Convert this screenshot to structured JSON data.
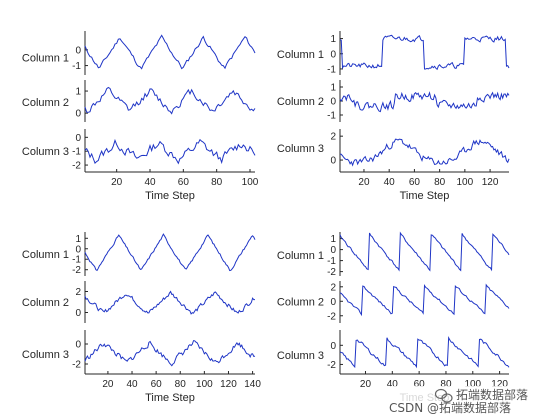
{
  "chart_data": [
    {
      "type": "line",
      "panel": "top-left",
      "xlabel": "Time Step",
      "xlim": [
        1,
        103
      ],
      "xticks": [
        20,
        40,
        60,
        80,
        100
      ],
      "rows": [
        {
          "name": "Column 1",
          "ylim": [
            -1.6,
            1.2
          ],
          "yticks": [
            0,
            -1
          ],
          "yticklabels": [
            "0",
            "-1"
          ],
          "style": {
            "kind": "tri",
            "period": 25,
            "phase": 3,
            "amp": 1.0,
            "offset": -0.2,
            "noise": 0.22,
            "seed": 11
          }
        },
        {
          "name": "Column 2",
          "ylim": [
            -0.4,
            1.5
          ],
          "yticks": [
            1,
            0
          ],
          "yticklabels": [
            "1",
            "0"
          ],
          "style": {
            "kind": "tri",
            "period": 25,
            "phase": 10,
            "amp": 0.45,
            "offset": 0.55,
            "noise": 0.28,
            "seed": 12
          }
        },
        {
          "name": "Column 3",
          "ylim": [
            -2.5,
            0.6
          ],
          "yticks": [
            0,
            -1,
            -2
          ],
          "yticklabels": [
            "0",
            "-1",
            "-2"
          ],
          "style": {
            "kind": "tri",
            "period": 25,
            "phase": 5,
            "amp": 0.6,
            "offset": -1.0,
            "noise": 0.55,
            "seed": 13
          }
        }
      ]
    },
    {
      "type": "line",
      "panel": "top-right",
      "xlabel": "Time Step",
      "xlim": [
        1,
        135
      ],
      "xticks": [
        20,
        40,
        60,
        80,
        100,
        120
      ],
      "rows": [
        {
          "name": "Column 1",
          "ylim": [
            -1.4,
            1.5
          ],
          "yticks": [
            1,
            0,
            -1
          ],
          "yticklabels": [
            "1",
            "0",
            "-1"
          ],
          "style": {
            "kind": "rect",
            "period": 65,
            "phase": 30,
            "amp": 0.9,
            "offset": 0.1,
            "noise": 0.28,
            "seed": 21
          }
        },
        {
          "name": "Column 2",
          "ylim": [
            -1.5,
            1.5
          ],
          "yticks": [
            1,
            0,
            -1
          ],
          "yticklabels": [
            "1",
            "0",
            "-1"
          ],
          "style": {
            "kind": "rect",
            "period": 65,
            "phase": 20,
            "amp": 0.35,
            "offset": 0.0,
            "noise": 0.5,
            "seed": 22
          }
        },
        {
          "name": "Column 3",
          "ylim": [
            -1.0,
            2.6
          ],
          "yticks": [
            2,
            0
          ],
          "yticklabels": [
            "2",
            "0"
          ],
          "style": {
            "kind": "bump",
            "period": 65,
            "phase": 50,
            "amp": 0.9,
            "offset": 0.3,
            "noise": 0.5,
            "seed": 23
          }
        }
      ]
    },
    {
      "type": "line",
      "panel": "bottom-left",
      "xlabel": "Time Step",
      "xlim": [
        1,
        142
      ],
      "xticks": [
        20,
        40,
        60,
        80,
        100,
        120,
        140
      ],
      "rows": [
        {
          "name": "Column 1",
          "ylim": [
            -2.6,
            1.6
          ],
          "yticks": [
            1,
            0,
            -1,
            -2
          ],
          "yticklabels": [
            "1",
            "0",
            "-1",
            "-2"
          ],
          "style": {
            "kind": "tri",
            "period": 37,
            "phase": 8,
            "amp": 1.7,
            "offset": -0.4,
            "noise": 0.18,
            "seed": 31
          }
        },
        {
          "name": "Column 2",
          "ylim": [
            -1.0,
            3.0
          ],
          "yticks": [
            2,
            0
          ],
          "yticklabels": [
            "2",
            "0"
          ],
          "style": {
            "kind": "tri",
            "period": 37,
            "phase": 2,
            "amp": 1.0,
            "offset": 0.9,
            "noise": 0.35,
            "seed": 32
          }
        },
        {
          "name": "Column 3",
          "ylim": [
            -3.0,
            1.4
          ],
          "yticks": [
            0,
            -2
          ],
          "yticklabels": [
            "0",
            "-2"
          ],
          "style": {
            "kind": "tri",
            "period": 37,
            "phase": 20,
            "amp": 1.0,
            "offset": -0.9,
            "noise": 0.45,
            "seed": 33
          }
        }
      ]
    },
    {
      "type": "line",
      "panel": "bottom-right",
      "xlabel": "Time Step",
      "xlim": [
        1,
        127
      ],
      "xticks": [
        20,
        40,
        60,
        80,
        100,
        120
      ],
      "rows": [
        {
          "name": "Column 1",
          "ylim": [
            -2.4,
            1.6
          ],
          "yticks": [
            1,
            0,
            -1,
            -2
          ],
          "yticklabels": [
            "1",
            "0",
            "-1",
            "-2"
          ],
          "style": {
            "kind": "saw",
            "period": 23,
            "phase": 0,
            "amp": 1.7,
            "offset": -0.3,
            "noise": 0.2,
            "seed": 41
          }
        },
        {
          "name": "Column 2",
          "ylim": [
            -3.0,
            2.8
          ],
          "yticks": [
            2,
            0,
            -2
          ],
          "yticklabels": [
            "2",
            "0",
            "-2"
          ],
          "style": {
            "kind": "saw",
            "period": 23,
            "phase": 5,
            "amp": 2.0,
            "offset": 0.1,
            "noise": 0.3,
            "seed": 42
          }
        },
        {
          "name": "Column 3",
          "ylim": [
            -3.0,
            1.6
          ],
          "yticks": [
            0,
            -2
          ],
          "yticklabels": [
            "0",
            "-2"
          ],
          "style": {
            "kind": "saw",
            "period": 23,
            "phase": 10,
            "amp": 1.5,
            "offset": -0.8,
            "noise": 0.3,
            "seed": 43
          }
        }
      ]
    }
  ],
  "watermark": {
    "text": "CSDN @拓端数据部落",
    "icon": "wechat-icon",
    "overlay_text": "拓端数据部落",
    "color": "#555555"
  },
  "colors": {
    "series": "#1f35c6",
    "axis": "#262626",
    "background": "#ffffff"
  }
}
